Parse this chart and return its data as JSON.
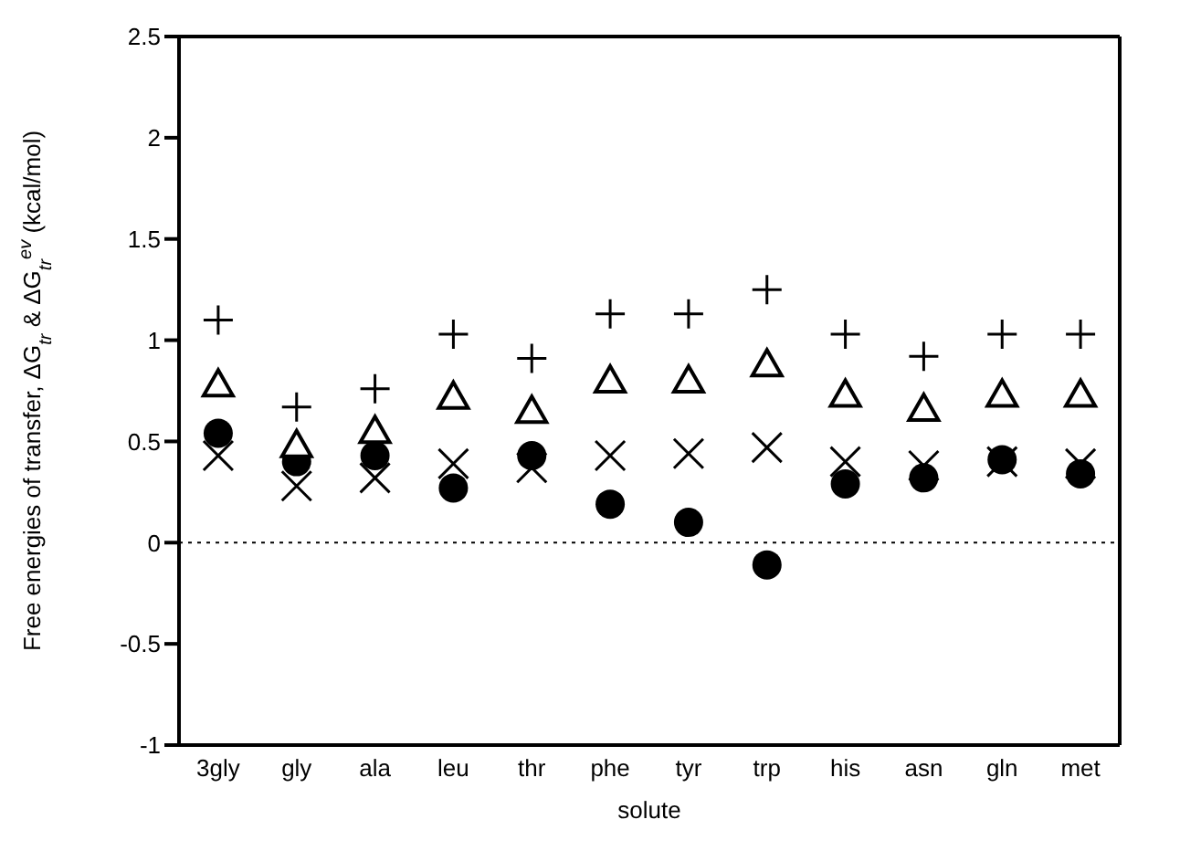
{
  "chart_data": {
    "type": "scatter",
    "xlabel": "solute",
    "ylabel": "Free energies of transfer, ΔG$_{tr}$ & ΔG$_{tr}$$^{ev}$ (kcal/mol)",
    "categories": [
      "3gly",
      "gly",
      "ala",
      "leu",
      "thr",
      "phe",
      "tyr",
      "trp",
      "his",
      "asn",
      "gln",
      "met"
    ],
    "series": [
      {
        "color": "#000000",
        "marker": "cross",
        "values": [
          1.1,
          0.67,
          0.76,
          1.03,
          0.91,
          1.13,
          1.13,
          1.25,
          1.03,
          0.92,
          1.03,
          1.03
        ]
      },
      {
        "color": "#000000",
        "marker": "triangle",
        "values": [
          0.78,
          0.48,
          0.55,
          0.72,
          0.65,
          0.8,
          0.8,
          0.88,
          0.73,
          0.66,
          0.73,
          0.73
        ]
      },
      {
        "color": "#000000",
        "marker": "x",
        "values": [
          0.43,
          0.28,
          0.32,
          0.39,
          0.37,
          0.43,
          0.44,
          0.47,
          0.4,
          0.38,
          0.4,
          0.39
        ]
      },
      {
        "color": "#000000",
        "marker": "circle",
        "values": [
          0.54,
          0.4,
          0.43,
          0.27,
          0.43,
          0.19,
          0.1,
          -0.11,
          0.29,
          0.32,
          0.41,
          0.34
        ]
      }
    ],
    "ylim": [
      -1,
      2.5
    ],
    "yticks": [
      -1,
      -0.5,
      0,
      0.5,
      1,
      1.5,
      2,
      2.5
    ],
    "ref_lines": [
      {
        "axis": "y",
        "value": 0,
        "line_style": "dotted",
        "color": "#000000"
      }
    ]
  }
}
